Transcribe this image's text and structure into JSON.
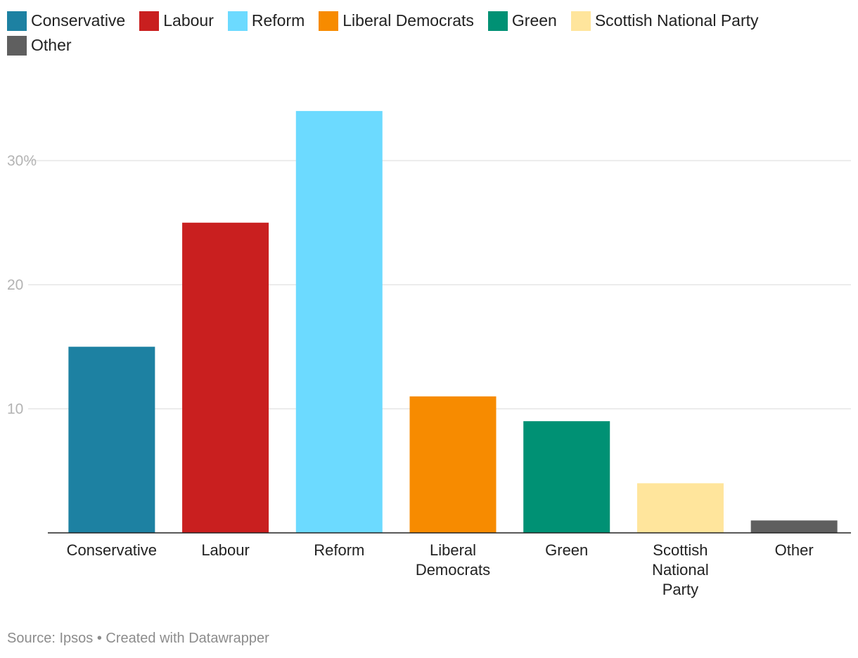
{
  "chart_data": {
    "type": "bar",
    "categories": [
      "Conservative",
      "Labour",
      "Reform",
      "Liberal Democrats",
      "Green",
      "Scottish National Party",
      "Other"
    ],
    "category_labels": [
      [
        "Conservative"
      ],
      [
        "Labour"
      ],
      [
        "Reform"
      ],
      [
        "Liberal",
        "Democrats"
      ],
      [
        "Green"
      ],
      [
        "Scottish",
        "National",
        "Party"
      ],
      [
        "Other"
      ]
    ],
    "values": [
      15,
      25,
      34,
      11,
      9,
      4,
      1
    ],
    "colors": [
      "#1d81a2",
      "#c91f1f",
      "#6cdaff",
      "#f78b00",
      "#009174",
      "#ffe59c",
      "#5f5f5f"
    ],
    "yticks": [
      {
        "value": 10,
        "label": "10"
      },
      {
        "value": 20,
        "label": "20"
      },
      {
        "value": 30,
        "label": "30%"
      }
    ],
    "ylim": [
      0,
      36
    ],
    "title": "",
    "xlabel": "",
    "ylabel": "",
    "grid": true,
    "legend_position": "top-left",
    "legend": [
      {
        "label": "Conservative",
        "color": "#1d81a2"
      },
      {
        "label": "Labour",
        "color": "#c91f1f"
      },
      {
        "label": "Reform",
        "color": "#6cdaff"
      },
      {
        "label": "Liberal Democrats",
        "color": "#f78b00"
      },
      {
        "label": "Green",
        "color": "#009174"
      },
      {
        "label": "Scottish National Party",
        "color": "#ffe59c"
      },
      {
        "label": "Other",
        "color": "#5f5f5f"
      }
    ]
  },
  "footer": {
    "source": "Source: Ipsos • Created with Datawrapper"
  }
}
